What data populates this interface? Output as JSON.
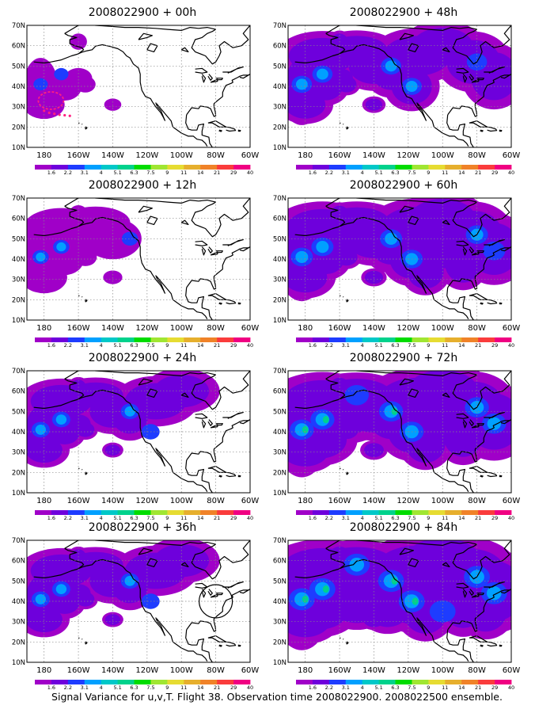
{
  "panels": [
    {
      "title": "2008022900 + 00h",
      "level": 0
    },
    {
      "title": "2008022900 + 48h",
      "level": 3
    },
    {
      "title": "2008022900 + 12h",
      "level": 1
    },
    {
      "title": "2008022900 + 60h",
      "level": 4
    },
    {
      "title": "2008022900 + 24h",
      "level": 2
    },
    {
      "title": "2008022900 + 72h",
      "level": 5
    },
    {
      "title": "2008022900 + 36h",
      "level": 2
    },
    {
      "title": "2008022900 + 84h",
      "level": 6
    }
  ],
  "lat_labels": [
    "70N",
    "60N",
    "50N",
    "40N",
    "30N",
    "20N",
    "10N"
  ],
  "lon_labels": [
    "180",
    "160W",
    "140W",
    "120W",
    "100W",
    "80W",
    "60W"
  ],
  "colorbar": {
    "labels": [
      "1.6",
      "2.2",
      "3.1",
      "4",
      "5.1",
      "6.3",
      "7.5",
      "9",
      "11",
      "14",
      "21",
      "29",
      "40"
    ],
    "colors": [
      "#a000c8",
      "#6e00dc",
      "#1e3cff",
      "#00a0ff",
      "#00c8c8",
      "#00d28c",
      "#00dc00",
      "#a0e632",
      "#e6dc32",
      "#e6af2d",
      "#f08228",
      "#fa3c3c",
      "#f00082"
    ]
  },
  "footer": "Signal Variance for u,v,T. Flight 38. Observation time 2008022900. 2008022500 ensemble."
}
